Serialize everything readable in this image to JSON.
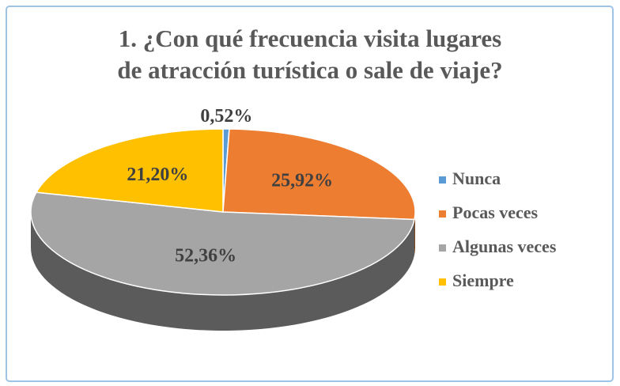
{
  "chart_data": {
    "type": "pie",
    "title": [
      "1. ¿Con qué frecuencia visita lugares",
      "de atracción turística o sale de viaje?"
    ],
    "categories": [
      "Nunca",
      "Pocas veces",
      "Algunas veces",
      "Siempre"
    ],
    "values": [
      0.52,
      25.92,
      52.36,
      21.2
    ],
    "value_labels": [
      "0,52%",
      "25,92%",
      "52,36%",
      "21,20%"
    ],
    "colors": [
      "#5b9bd5",
      "#ed7d31",
      "#a5a5a5",
      "#ffc000"
    ],
    "legend": "right"
  }
}
